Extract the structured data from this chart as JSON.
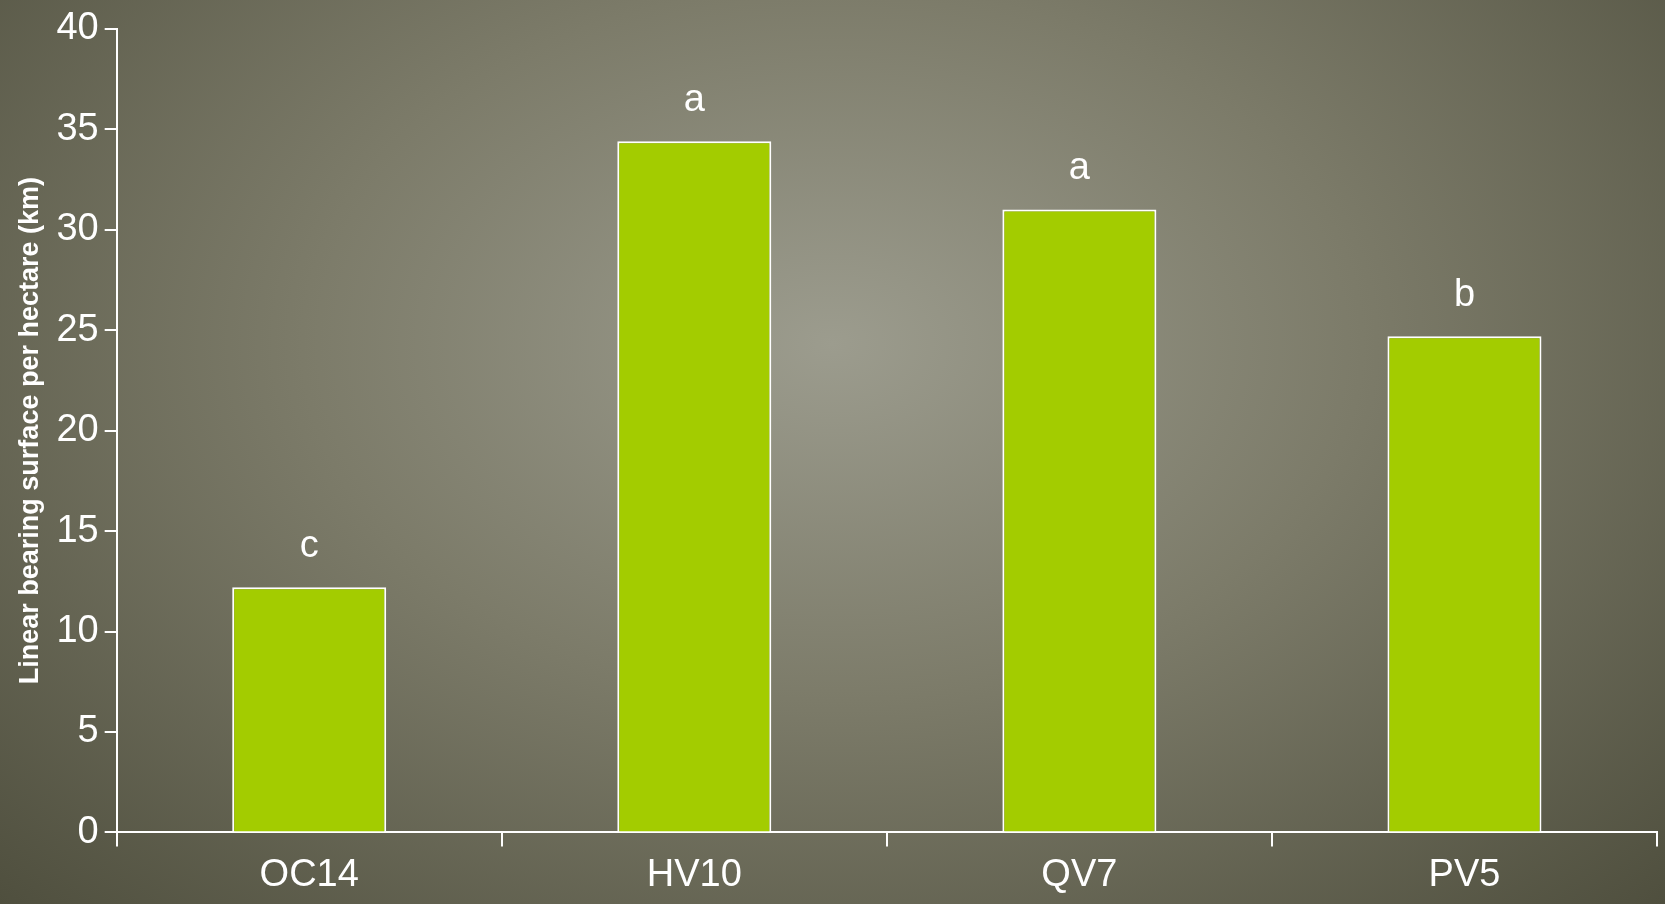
{
  "chart_data": {
    "type": "bar",
    "ylabel": "Linear bearing surface per hectare (km)",
    "categories": [
      "OC14",
      "HV10",
      "QV7",
      "PV5"
    ],
    "values": [
      12.2,
      34.4,
      31.0,
      24.7
    ],
    "color": "#a3cc00",
    "ylim": [
      0,
      40
    ],
    "yticks": [
      0,
      5,
      10,
      15,
      20,
      25,
      30,
      35,
      40
    ],
    "annotations": [
      {
        "text": "c",
        "x": "OC14",
        "y": 12.2
      },
      {
        "text": "a",
        "x": "HV10",
        "y": 34.4
      },
      {
        "text": "a",
        "x": "QV7",
        "y": 31.0
      },
      {
        "text": "b",
        "x": "PV5",
        "y": 24.7
      }
    ]
  }
}
